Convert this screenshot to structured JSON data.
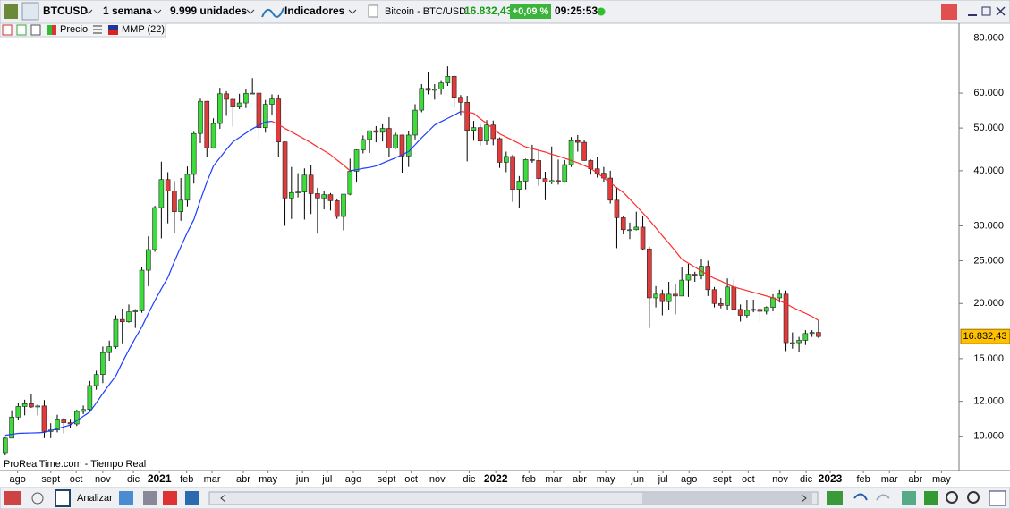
{
  "toolbar": {
    "symbol": "BTCUSD",
    "period": "1 semana",
    "units": "9.999 unidades",
    "indicators": "Indicadores",
    "instrument": "Bitcoin - BTC/USD",
    "price": "16.832,43",
    "change": "+0,09 %",
    "time": "09:25:53"
  },
  "legend_row": {
    "price": "Precio",
    "indicator": "MMP (22)"
  },
  "bottom_bar": {
    "analyze": "Analizar"
  },
  "chart_data": {
    "type": "candlestick",
    "source": "ProRealTime.com - Tiempo Real",
    "log_scale": true,
    "grid": false,
    "up_color": "#3ddc3d",
    "down_color": "#e23b3b",
    "wick_color": "#000000",
    "open": [
      9180,
      9900,
      11050,
      11680,
      11850,
      11650,
      11710,
      10250,
      10330,
      10940,
      10730,
      10660,
      11380,
      11500,
      13030,
      13800,
      15480,
      15960,
      18400,
      18180,
      19150,
      19250,
      23800,
      26500,
      33000,
      38200,
      36000,
      32300,
      34300,
      39250,
      48600,
      57500,
      45100,
      51200,
      59800,
      58100,
      55800,
      57000,
      59900,
      60000,
      50100,
      56600,
      58200,
      46500,
      34700,
      35700,
      35800,
      39100,
      35500,
      34700,
      35300,
      34200,
      31500,
      35400,
      39900,
      44600,
      47100,
      49300,
      48900,
      49900,
      45000,
      48200,
      43200,
      48200,
      54900,
      61500,
      60900,
      61300,
      63300,
      65500,
      58700,
      57200,
      49400,
      50100,
      46700,
      50800,
      47300,
      41800,
      43100,
      36300,
      37900,
      42400,
      42200,
      38400,
      37700,
      38000,
      37800,
      41300,
      46800,
      46400,
      42200,
      40400,
      39500,
      38500,
      34300,
      31300,
      29400,
      29400,
      29800,
      26600,
      20600,
      21000,
      20200,
      21000,
      20800,
      22600,
      23300,
      23200,
      24300,
      21500,
      20000,
      19800,
      21800,
      19400,
      18800,
      19300,
      19400,
      19200,
      19600,
      20600,
      21000,
      16300,
      16300,
      16500,
      17100,
      17200
    ],
    "high": [
      9990,
      11450,
      11900,
      12100,
      12450,
      11800,
      12080,
      10700,
      11180,
      11000,
      10950,
      11480,
      11740,
      13350,
      14080,
      15970,
      16480,
      18800,
      19470,
      19900,
      19420,
      24200,
      28400,
      33300,
      41950,
      39700,
      37900,
      38500,
      40900,
      49000,
      58300,
      57600,
      52600,
      61700,
      60600,
      58400,
      59800,
      61300,
      64900,
      60100,
      57900,
      59600,
      59500,
      46600,
      40800,
      39500,
      40500,
      41300,
      36600,
      36000,
      35600,
      34600,
      35400,
      42600,
      44700,
      48100,
      49300,
      50500,
      51000,
      52900,
      48800,
      48300,
      49200,
      56600,
      62900,
      67000,
      62900,
      64200,
      69000,
      66000,
      59400,
      59200,
      51900,
      50900,
      52100,
      52000,
      47600,
      44200,
      43500,
      38900,
      42600,
      45800,
      44500,
      39800,
      45400,
      42400,
      42300,
      47700,
      48200,
      47000,
      42400,
      42900,
      40800,
      40000,
      36700,
      31500,
      30500,
      32300,
      31600,
      26900,
      21900,
      21500,
      22400,
      22200,
      24200,
      24600,
      23600,
      25200,
      25000,
      21800,
      20600,
      22800,
      22700,
      19900,
      20400,
      20400,
      19700,
      19700,
      21000,
      21500,
      21400,
      17200,
      16800,
      17400,
      17400,
      18300
    ],
    "low": [
      9050,
      9900,
      10900,
      11150,
      11600,
      11150,
      9900,
      9900,
      10200,
      10150,
      10450,
      10550,
      11220,
      11400,
      12750,
      13200,
      14800,
      15800,
      16250,
      18100,
      17600,
      19050,
      21900,
      26200,
      28100,
      30400,
      28900,
      30800,
      33200,
      37400,
      46200,
      43000,
      44900,
      49800,
      53300,
      50400,
      55200,
      55500,
      59700,
      47000,
      48800,
      53400,
      42900,
      30000,
      31100,
      34800,
      31000,
      31900,
      28800,
      32700,
      32500,
      31100,
      29300,
      35200,
      37600,
      43800,
      43900,
      46400,
      46600,
      43000,
      44800,
      39600,
      40800,
      47100,
      54300,
      59600,
      58000,
      59600,
      62300,
      55700,
      53300,
      42000,
      46800,
      45600,
      45800,
      45700,
      40600,
      39700,
      34000,
      33000,
      36300,
      41700,
      37000,
      34300,
      37300,
      37200,
      37600,
      40800,
      44200,
      42100,
      39200,
      38600,
      37600,
      33700,
      26700,
      28700,
      28000,
      29300,
      26500,
      17600,
      19600,
      18800,
      19300,
      18900,
      20800,
      20700,
      22400,
      22700,
      20800,
      19600,
      19500,
      19300,
      19300,
      18200,
      18500,
      19100,
      18200,
      18900,
      19200,
      20100,
      15600,
      15800,
      15500,
      16100,
      16800,
      16700
    ],
    "close": [
      9900,
      11050,
      11680,
      11850,
      11650,
      11710,
      10250,
      10330,
      10940,
      10730,
      10660,
      11380,
      11500,
      13030,
      13800,
      15480,
      15960,
      18400,
      18180,
      19150,
      19250,
      23800,
      26500,
      33000,
      38200,
      36000,
      32300,
      34300,
      39250,
      48600,
      57500,
      45100,
      51200,
      59800,
      58100,
      55800,
      57000,
      59900,
      60000,
      50100,
      56600,
      58200,
      46500,
      34700,
      35700,
      35800,
      39100,
      35500,
      34700,
      35300,
      34200,
      31500,
      35400,
      39900,
      44600,
      47100,
      49300,
      48900,
      49900,
      45000,
      48200,
      43200,
      48200,
      54900,
      61500,
      60900,
      61300,
      63300,
      65500,
      58700,
      57200,
      49400,
      50100,
      46700,
      50800,
      47300,
      41800,
      43100,
      36300,
      37900,
      42400,
      42200,
      38400,
      37700,
      38000,
      37800,
      41300,
      46800,
      46400,
      42200,
      40400,
      39500,
      38500,
      34300,
      31300,
      29400,
      29400,
      29800,
      26600,
      20600,
      21000,
      20200,
      21000,
      20800,
      22600,
      23300,
      23200,
      24300,
      21500,
      20000,
      19800,
      21800,
      19400,
      18800,
      19300,
      19400,
      19200,
      19600,
      20600,
      21000,
      16300,
      16300,
      16500,
      17100,
      17200,
      16832.43
    ],
    "moving_average": {
      "name": "MMP (22)",
      "color_rising": "#1a3cff",
      "color_falling": "#ff2a2a",
      "values": [
        10050,
        10100,
        10150,
        10160,
        10170,
        10180,
        10200,
        10300,
        10400,
        10500,
        10600,
        10850,
        11100,
        11350,
        11900,
        12500,
        13100,
        13700,
        14700,
        15700,
        16700,
        17700,
        19000,
        20300,
        21600,
        22900,
        24900,
        26900,
        29000,
        31000,
        34300,
        37700,
        41000,
        42800,
        44700,
        46500,
        47600,
        48700,
        49800,
        50700,
        51600,
        51800,
        50900,
        49900,
        49000,
        48100,
        47200,
        46300,
        45300,
        44400,
        43500,
        42300,
        41200,
        40000,
        40200,
        40500,
        40700,
        41000,
        41600,
        42200,
        42800,
        43500,
        44200,
        45800,
        47500,
        49100,
        50800,
        51700,
        52600,
        53500,
        54500,
        54300,
        54000,
        52500,
        51200,
        49800,
        48500,
        47700,
        46900,
        46100,
        45300,
        44900,
        44500,
        44100,
        43600,
        43200,
        42700,
        42200,
        41700,
        41100,
        40500,
        39500,
        38500,
        37600,
        36600,
        35700,
        34500,
        33300,
        32100,
        30900,
        29700,
        28500,
        27400,
        26300,
        25200,
        24700,
        24200,
        23700,
        23200,
        22800,
        22500,
        22100,
        21800,
        21600,
        21400,
        21200,
        21000,
        20800,
        20600,
        20300,
        20000,
        19600,
        19300,
        19000,
        18700,
        18300
      ]
    },
    "last_price": {
      "value": 16832.43,
      "label": "16.832,43"
    },
    "ylim": [
      8400,
      86000
    ],
    "yticks": [
      {
        "value": 10000,
        "label": "10.000"
      },
      {
        "value": 12000,
        "label": "12.000"
      },
      {
        "value": 15000,
        "label": "15.000"
      },
      {
        "value": 20000,
        "label": "20.000"
      },
      {
        "value": 25000,
        "label": "25.000"
      },
      {
        "value": 30000,
        "label": "30.000"
      },
      {
        "value": 40000,
        "label": "40.000"
      },
      {
        "value": 50000,
        "label": "50.000"
      },
      {
        "value": 60000,
        "label": "60.000"
      },
      {
        "value": 80000,
        "label": "80.000"
      }
    ],
    "xlim": [
      -0.8,
      146.6
    ],
    "xticks": [
      {
        "value": 1.9,
        "label": "ago"
      },
      {
        "value": 7.0,
        "label": "sept"
      },
      {
        "value": 10.9,
        "label": "oct"
      },
      {
        "value": 15.0,
        "label": "nov"
      },
      {
        "value": 19.7,
        "label": "dic"
      },
      {
        "value": 23.7,
        "label": "2021"
      },
      {
        "value": 27.9,
        "label": "feb"
      },
      {
        "value": 31.8,
        "label": "mar"
      },
      {
        "value": 36.6,
        "label": "abr"
      },
      {
        "value": 40.4,
        "label": "may"
      },
      {
        "value": 45.7,
        "label": "jun"
      },
      {
        "value": 49.5,
        "label": "jul"
      },
      {
        "value": 53.5,
        "label": "ago"
      },
      {
        "value": 58.6,
        "label": "sept"
      },
      {
        "value": 62.4,
        "label": "oct"
      },
      {
        "value": 66.4,
        "label": "nov"
      },
      {
        "value": 71.3,
        "label": "dic"
      },
      {
        "value": 75.4,
        "label": "2022"
      },
      {
        "value": 80.5,
        "label": "feb"
      },
      {
        "value": 84.3,
        "label": "mar"
      },
      {
        "value": 88.3,
        "label": "abr"
      },
      {
        "value": 92.3,
        "label": "may"
      },
      {
        "value": 97.2,
        "label": "jun"
      },
      {
        "value": 101.1,
        "label": "jul"
      },
      {
        "value": 105.1,
        "label": "ago"
      },
      {
        "value": 110.2,
        "label": "sept"
      },
      {
        "value": 114.2,
        "label": "oct"
      },
      {
        "value": 119.1,
        "label": "nov"
      },
      {
        "value": 123.1,
        "label": "dic"
      },
      {
        "value": 126.8,
        "label": "2023"
      },
      {
        "value": 131.9,
        "label": "feb"
      },
      {
        "value": 135.9,
        "label": "mar"
      },
      {
        "value": 139.9,
        "label": "abr"
      },
      {
        "value": 143.9,
        "label": "may"
      }
    ]
  }
}
